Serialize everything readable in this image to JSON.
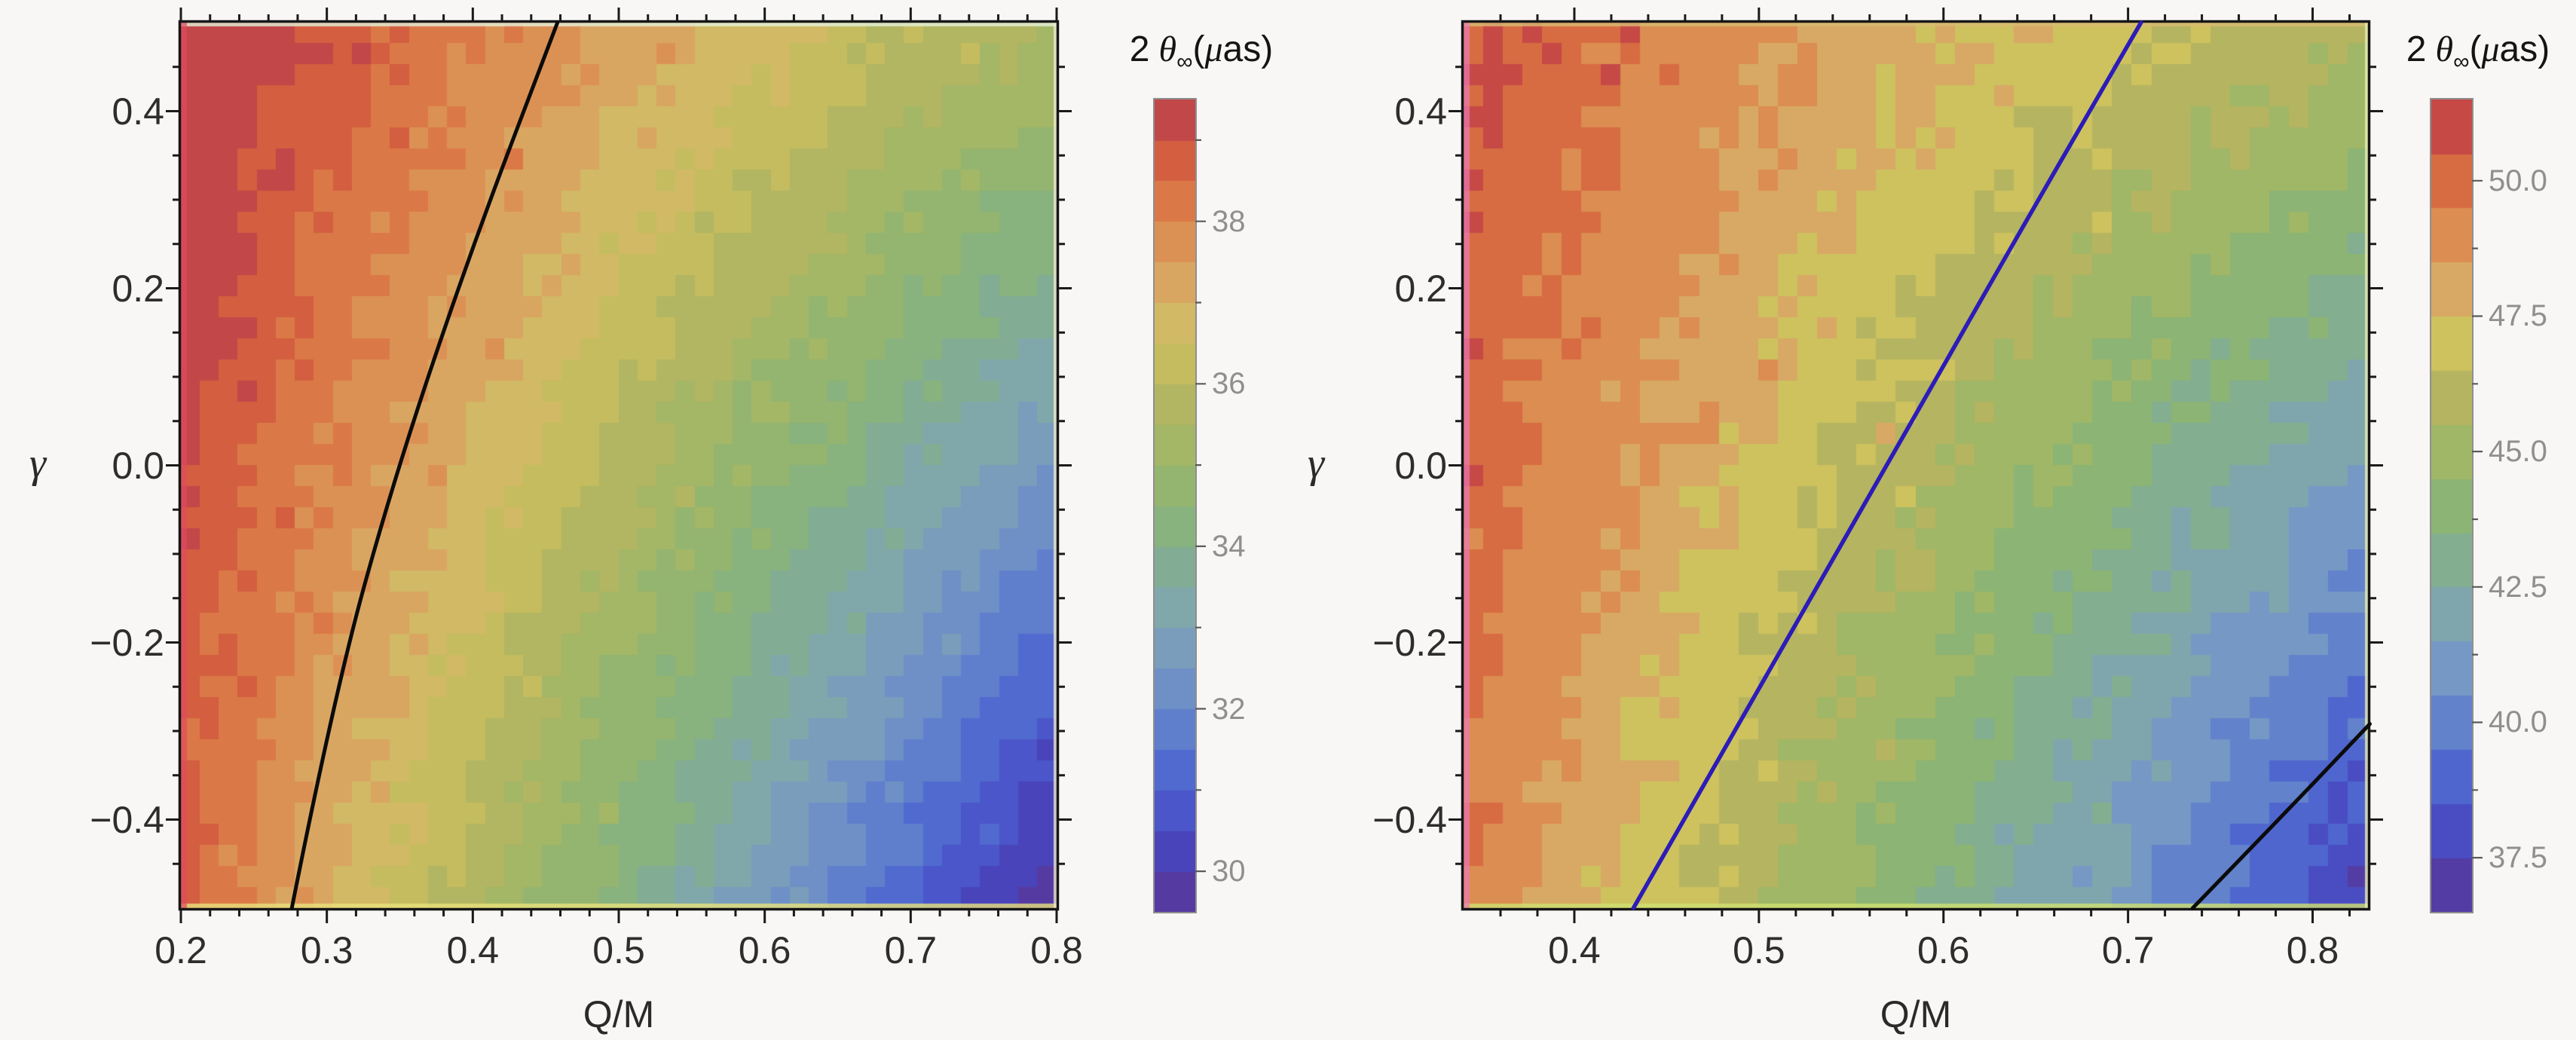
{
  "page": {
    "background": "#f8f7f5"
  },
  "chart_data": {
    "type": "heatmap",
    "figure_kind": "filled-contour-density-pair",
    "colormap": [
      [
        0.0,
        "#5a3794"
      ],
      [
        0.075,
        "#4a44bb"
      ],
      [
        0.15,
        "#4a5fd0"
      ],
      [
        0.225,
        "#5f7fcd"
      ],
      [
        0.3,
        "#7698c4"
      ],
      [
        0.375,
        "#80a8aa"
      ],
      [
        0.44,
        "#83af8d"
      ],
      [
        0.5,
        "#8cb474"
      ],
      [
        0.57,
        "#a1b766"
      ],
      [
        0.64,
        "#b7b45f"
      ],
      [
        0.7,
        "#cec25f"
      ],
      [
        0.745,
        "#d6b269"
      ],
      [
        0.8,
        "#dc9c5c"
      ],
      [
        0.86,
        "#dc8149"
      ],
      [
        0.92,
        "#d5613f"
      ],
      [
        0.965,
        "#c74a45"
      ],
      [
        1.0,
        "#b13f51"
      ]
    ],
    "panels": [
      {
        "xlabel": "Q/M",
        "ylabel": "γ",
        "legend_title_text": "2 θ∞(μas)",
        "legend_title": {
          "coef": "2",
          "theta": "θ",
          "sub": "∞",
          "open": "(",
          "mu": "μ",
          "close": "as)"
        },
        "x_range": [
          0.2,
          0.8
        ],
        "y_range": [
          -0.5,
          0.5
        ],
        "x_ticks": [
          {
            "v": 0.2,
            "l": "0.2"
          },
          {
            "v": 0.3,
            "l": "0.3"
          },
          {
            "v": 0.4,
            "l": "0.4"
          },
          {
            "v": 0.5,
            "l": "0.5"
          },
          {
            "v": 0.6,
            "l": "0.6"
          },
          {
            "v": 0.7,
            "l": "0.7"
          },
          {
            "v": 0.8,
            "l": "0.8"
          }
        ],
        "y_ticks": [
          {
            "v": 0.4,
            "l": "0.4"
          },
          {
            "v": 0.2,
            "l": "0.2"
          },
          {
            "v": 0.0,
            "l": "0.0"
          },
          {
            "v": -0.2,
            "l": "−0.2"
          },
          {
            "v": -0.4,
            "l": "−0.4"
          }
        ],
        "x_minor_step": 0.02,
        "y_minor_step": 0.05,
        "colorbar": {
          "range": [
            29.5,
            39.5
          ],
          "step": 0.5,
          "ticks": [
            {
              "v": 38,
              "l": "38"
            },
            {
              "v": 36,
              "l": "36"
            },
            {
              "v": 34,
              "l": "34"
            },
            {
              "v": 32,
              "l": "32"
            },
            {
              "v": 30,
              "l": "30"
            }
          ],
          "minor": [
            39,
            37,
            35,
            33,
            31
          ]
        },
        "field": {
          "a": 41.3,
          "b": 11.0,
          "c0": 4.83,
          "c1": 3.33
        },
        "noise": 0.42,
        "grid": [
          46,
          42
        ],
        "lines": [
          {
            "color": "#0b0b0b",
            "width": 5,
            "points": [
              [
                0.276,
                -0.5
              ],
              [
                0.305,
                -0.26
              ],
              [
                0.345,
                -0.02
              ],
              [
                0.398,
                0.24
              ],
              [
                0.458,
                0.5
              ]
            ]
          }
        ],
        "edge_colors": {
          "top": "#e3f0d8",
          "bottom": "#e8e27c",
          "left": "#e04a60",
          "right": "#efe9cf"
        }
      },
      {
        "xlabel": "Q/M",
        "ylabel": "γ",
        "legend_title_text": "2 θ∞(μas)",
        "legend_title": {
          "coef": "2",
          "theta": "θ",
          "sub": "∞",
          "open": "(",
          "mu": "μ",
          "close": "as)"
        },
        "x_range": [
          0.34,
          0.83
        ],
        "y_range": [
          -0.5,
          0.5
        ],
        "x_ticks": [
          {
            "v": 0.4,
            "l": "0.4"
          },
          {
            "v": 0.5,
            "l": "0.5"
          },
          {
            "v": 0.6,
            "l": "0.6"
          },
          {
            "v": 0.7,
            "l": "0.7"
          },
          {
            "v": 0.8,
            "l": "0.8"
          }
        ],
        "y_ticks": [
          {
            "v": 0.4,
            "l": "0.4"
          },
          {
            "v": 0.2,
            "l": "0.2"
          },
          {
            "v": 0.0,
            "l": "0.0"
          },
          {
            "v": -0.2,
            "l": "−0.2"
          },
          {
            "v": -0.4,
            "l": "−0.4"
          }
        ],
        "x_minor_step": 0.02,
        "y_minor_step": 0.05,
        "colorbar": {
          "range": [
            36.5,
            51.5
          ],
          "step": 1.0,
          "ticks": [
            {
              "v": 50.0,
              "l": "50.0"
            },
            {
              "v": 47.5,
              "l": "47.5"
            },
            {
              "v": 45.0,
              "l": "45.0"
            },
            {
              "v": 42.5,
              "l": "42.5"
            },
            {
              "v": 40.0,
              "l": "40.0"
            },
            {
              "v": 37.5,
              "l": "37.5"
            }
          ],
          "minor": [
            48.75,
            46.25,
            43.75,
            41.25,
            38.75
          ]
        },
        "field": {
          "a": 55.98,
          "b": 17.45,
          "c0": 0.29,
          "c1": 12.1
        },
        "noise": 0.85,
        "grid": [
          46,
          42
        ],
        "lines": [
          {
            "color": "#2c1cb8",
            "width": 5.5,
            "points": [
              [
                0.432,
                -0.5
              ],
              [
                0.499,
                -0.255
              ],
              [
                0.568,
                -0.005
              ],
              [
                0.637,
                0.248
              ],
              [
                0.707,
                0.5
              ]
            ]
          },
          {
            "color": "#0b0b0b",
            "width": 5,
            "points": [
              [
                0.735,
                -0.5
              ],
              [
                0.784,
                -0.395
              ],
              [
                0.831,
                -0.292
              ]
            ]
          }
        ],
        "edge_colors": {
          "top": "#d8bc72",
          "bottom": "#cfe170",
          "left": "#ec79b4",
          "right": "#e8edb4"
        }
      }
    ]
  }
}
